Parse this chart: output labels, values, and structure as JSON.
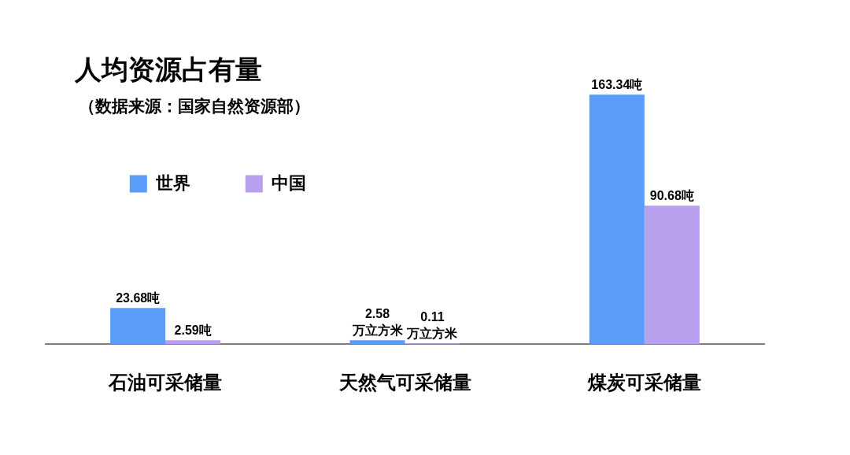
{
  "chart_data": {
    "type": "bar",
    "title": "人均资源占有量",
    "subtitle": "（数据来源：国家自然资源部）",
    "categories": [
      "石油可采储量",
      "天然气可采储量",
      "煤炭可采储量"
    ],
    "series": [
      {
        "name": "世界",
        "color": "#5a9cf8",
        "values": [
          23.68,
          2.58,
          163.34
        ],
        "value_labels": [
          "23.68吨",
          "2.58\n万立方米",
          "163.34吨"
        ]
      },
      {
        "name": "中国",
        "color": "#b9a0ee",
        "values": [
          2.59,
          0.11,
          90.68
        ],
        "value_labels": [
          "2.59吨",
          "0.11\n万立方米",
          "90.68吨"
        ]
      }
    ],
    "legend": "top left"
  }
}
